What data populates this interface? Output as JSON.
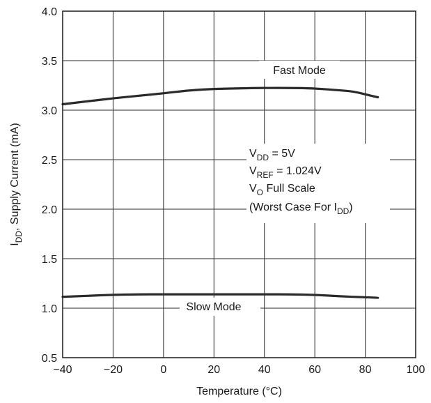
{
  "chart_data": {
    "type": "line",
    "xlabel": "Temperature (°C)",
    "ylabel": {
      "main": "I",
      "sub": "DD",
      "rest": ", Supply Current (mA)"
    },
    "xlim": [
      -40,
      100
    ],
    "ylim": [
      0.5,
      4.0
    ],
    "x_ticks": [
      -40,
      -20,
      0,
      20,
      40,
      60,
      80,
      100
    ],
    "x_tick_labels": [
      "−40",
      "−20",
      "0",
      "20",
      "40",
      "60",
      "80",
      "100"
    ],
    "y_ticks": [
      0.5,
      1.0,
      1.5,
      2.0,
      2.5,
      3.0,
      3.5,
      4.0
    ],
    "y_tick_labels": [
      "0.5",
      "1.0",
      "1.5",
      "2.0",
      "2.5",
      "3.0",
      "3.5",
      "4.0"
    ],
    "grid": true,
    "series": [
      {
        "name": "Fast Mode",
        "x": [
          -40,
          -30,
          -20,
          -10,
          0,
          10,
          20,
          30,
          40,
          50,
          60,
          70,
          75,
          80,
          85
        ],
        "y": [
          3.06,
          3.09,
          3.12,
          3.145,
          3.17,
          3.2,
          3.215,
          3.22,
          3.225,
          3.225,
          3.22,
          3.2,
          3.19,
          3.16,
          3.13
        ]
      },
      {
        "name": "Slow Mode",
        "x": [
          -40,
          -30,
          -20,
          -10,
          0,
          10,
          20,
          30,
          40,
          50,
          60,
          70,
          80,
          85
        ],
        "y": [
          1.115,
          1.125,
          1.135,
          1.14,
          1.14,
          1.14,
          1.14,
          1.14,
          1.14,
          1.14,
          1.135,
          1.12,
          1.11,
          1.105
        ]
      }
    ],
    "annotations": {
      "fast_mode": "Fast Mode",
      "slow_mode": "Slow Mode",
      "condition_lines": [
        {
          "main": "V",
          "sub": "DD",
          "rest": " = 5V"
        },
        {
          "main": "V",
          "sub": "REF",
          "rest": " = 1.024V"
        },
        {
          "main": "V",
          "sub": "O",
          "rest": " Full Scale"
        },
        {
          "main": "(Worst Case For I",
          "sub": "DD",
          "rest": ")"
        }
      ]
    }
  }
}
